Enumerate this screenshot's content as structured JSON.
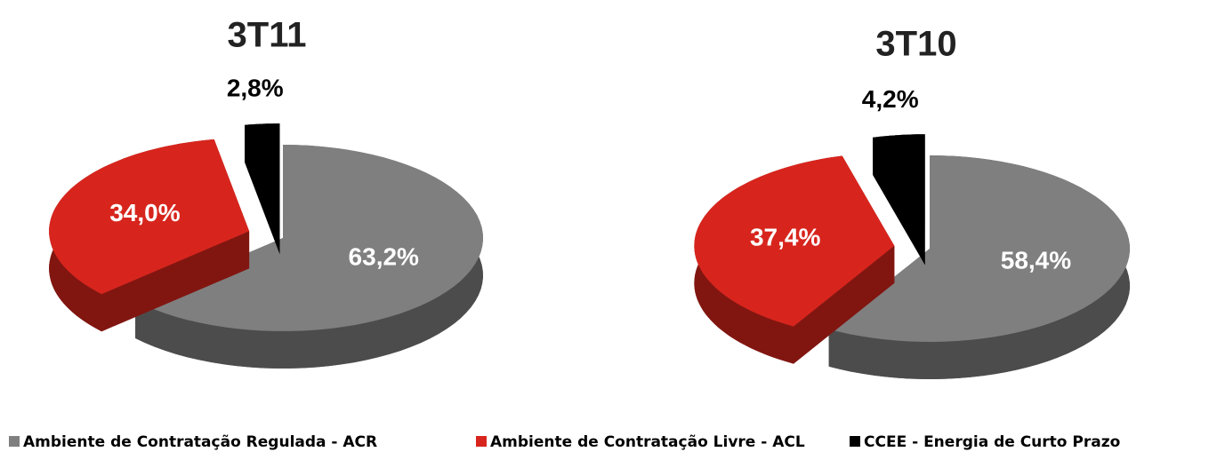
{
  "chart_data": [
    {
      "type": "pie",
      "title": "3T11",
      "categories": [
        "Ambiente de Contratação Regulada  - ACR",
        "Ambiente de Contratação Livre  - ACL",
        "CCEE - Energia de Curto Prazo"
      ],
      "values": [
        63.2,
        34.0,
        2.8
      ],
      "value_labels": [
        "63,2%",
        "34,0%",
        "2,8%"
      ],
      "colors": [
        "#7f7f7f",
        "#d7251d",
        "#000000"
      ]
    },
    {
      "type": "pie",
      "title": "3T10",
      "values": [
        58.4,
        37.4,
        4.2
      ],
      "value_labels": [
        "58,4%",
        "37,4%",
        "4,2%"
      ],
      "colors": [
        "#7f7f7f",
        "#d7251d",
        "#000000"
      ]
    }
  ]
}
